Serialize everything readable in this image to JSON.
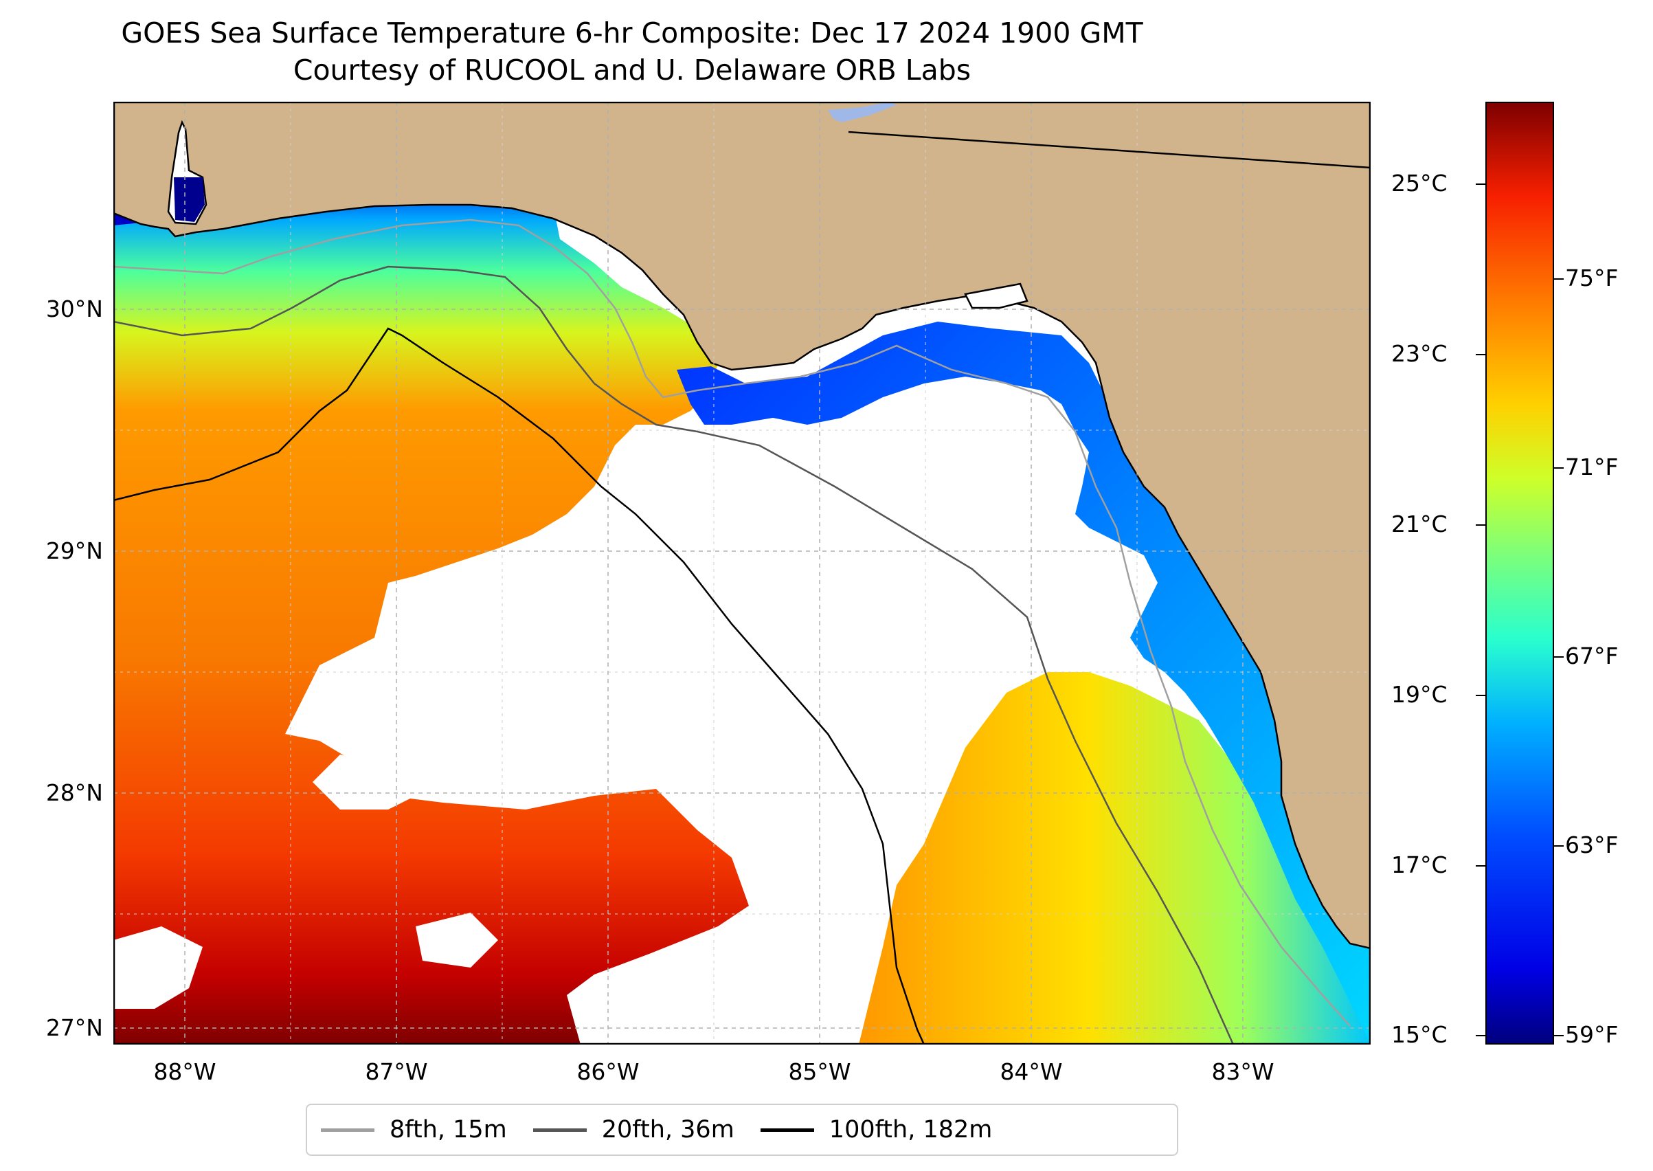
{
  "title": "GOES Sea Surface Temperature 6-hr Composite: Dec 17 2024 1900 GMT",
  "subtitle": "Courtesy of RUCOOL and U. Delaware ORB Labs",
  "map": {
    "lat_labels": [
      "30°N",
      "29°N",
      "28°N",
      "27°N"
    ],
    "lon_labels": [
      "88°W",
      "87°W",
      "86°W",
      "85°W",
      "84°W",
      "83°W"
    ],
    "colors": {
      "land": "#d2b48c",
      "no_data": "#ffffff",
      "grid": "#b0b0b0"
    }
  },
  "colorbar": {
    "celsius_labels": [
      "25°C",
      "23°C",
      "21°C",
      "19°C",
      "17°C",
      "15°C"
    ],
    "fahrenheit_labels": [
      "75°F",
      "71°F",
      "67°F",
      "63°F",
      "59°F"
    ],
    "colormap": "jet"
  },
  "legend": {
    "items": [
      {
        "label": "8fth, 15m",
        "color": "#a0a0a0"
      },
      {
        "label": "20fth, 36m",
        "color": "#555555"
      },
      {
        "label": "100fth, 182m",
        "color": "#000000"
      }
    ]
  }
}
